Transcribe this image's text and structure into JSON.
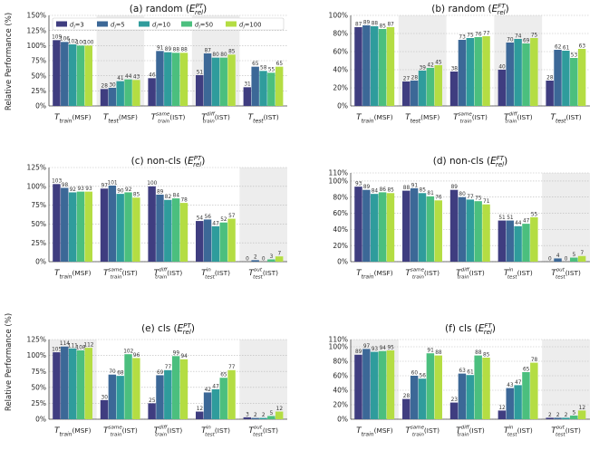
{
  "legend": {
    "entries": [
      {
        "label": "d_l=3",
        "color": "#3f3d80"
      },
      {
        "label": "d_l=5",
        "color": "#3c6897"
      },
      {
        "label": "d_l=10",
        "color": "#2f9c9c"
      },
      {
        "label": "d_l=50",
        "color": "#4bbf7e"
      },
      {
        "label": "d_l=100",
        "color": "#b4dd43"
      }
    ]
  },
  "ylabel": "Relative Performance (%)",
  "chart_data": [
    {
      "type": "bar",
      "title": "(a) random",
      "metric": "E_rel^PT",
      "ylim": [
        0,
        150
      ],
      "yticks": [
        "0%",
        "25%",
        "50%",
        "75%",
        "100%",
        "125%",
        "150%"
      ],
      "categories": [
        {
          "base": "T",
          "sub": "train",
          "suffix": "(MSF)"
        },
        {
          "base": "T",
          "sub": "test",
          "suffix": "(MSF)"
        },
        {
          "base": "T",
          "sup": "same",
          "sub": "train",
          "suffix": "(IST)"
        },
        {
          "base": "T",
          "sup": "diff",
          "sub": "train",
          "suffix": "(IST)"
        },
        {
          "base": "T",
          "sub": "test",
          "suffix": "(IST)"
        }
      ],
      "shaded": [
        1,
        3
      ],
      "series": [
        {
          "name": "d_l=3",
          "values": [
            109,
            28,
            46,
            51,
            31
          ]
        },
        {
          "name": "d_l=5",
          "values": [
            106,
            30,
            91,
            87,
            65
          ]
        },
        {
          "name": "d_l=10",
          "values": [
            102,
            41,
            89,
            80,
            58
          ]
        },
        {
          "name": "d_l=50",
          "values": [
            100,
            44,
            88,
            80,
            55
          ]
        },
        {
          "name": "d_l=100",
          "values": [
            100,
            43,
            88,
            85,
            65
          ]
        }
      ]
    },
    {
      "type": "bar",
      "title": "(b) random",
      "metric": "E_rel^FT",
      "ylim": [
        0,
        100
      ],
      "yticks": [
        "0%",
        "20%",
        "40%",
        "60%",
        "80%",
        "100%"
      ],
      "categories": [
        {
          "base": "T",
          "sub": "train",
          "suffix": "(MSF)"
        },
        {
          "base": "T",
          "sub": "test",
          "suffix": "(MSF)"
        },
        {
          "base": "T",
          "sup": "same",
          "sub": "train",
          "suffix": "(IST)"
        },
        {
          "base": "T",
          "sup": "diff",
          "sub": "train",
          "suffix": "(IST)"
        },
        {
          "base": "T",
          "sub": "test",
          "suffix": "(IST)"
        }
      ],
      "shaded": [
        1,
        3
      ],
      "series": [
        {
          "name": "d_l=3",
          "values": [
            87,
            27,
            38,
            40,
            28
          ]
        },
        {
          "name": "d_l=5",
          "values": [
            89,
            28,
            73,
            70,
            62
          ]
        },
        {
          "name": "d_l=10",
          "values": [
            88,
            39,
            75,
            74,
            61
          ]
        },
        {
          "name": "d_l=50",
          "values": [
            85,
            42,
            76,
            69,
            53
          ]
        },
        {
          "name": "d_l=100",
          "values": [
            87,
            45,
            77,
            75,
            63
          ]
        }
      ]
    },
    {
      "type": "bar",
      "title": "(c) non-cls",
      "metric": "E_rel^PT",
      "ylim": [
        0,
        125
      ],
      "yticks": [
        "0%",
        "25%",
        "50%",
        "75%",
        "100%",
        "125%"
      ],
      "categories": [
        {
          "base": "T",
          "sub": "train",
          "suffix": "(MSF)"
        },
        {
          "base": "T",
          "sup": "same",
          "sub": "train",
          "suffix": "(IST)"
        },
        {
          "base": "T",
          "sup": "diff",
          "sub": "train",
          "suffix": "(IST)"
        },
        {
          "base": "T",
          "sup": "in",
          "sub": "test",
          "suffix": "(IST)"
        },
        {
          "base": "T",
          "sup": "out",
          "sub": "test",
          "suffix": "(IST)"
        }
      ],
      "shaded": [
        4
      ],
      "series": [
        {
          "name": "d_l=3",
          "values": [
            103,
            97,
            100,
            54,
            0
          ]
        },
        {
          "name": "d_l=5",
          "values": [
            98,
            101,
            89,
            56,
            2
          ]
        },
        {
          "name": "d_l=10",
          "values": [
            92,
            90,
            82,
            47,
            0
          ]
        },
        {
          "name": "d_l=50",
          "values": [
            93,
            92,
            84,
            52,
            3
          ]
        },
        {
          "name": "d_l=100",
          "values": [
            93,
            85,
            78,
            57,
            7
          ]
        }
      ]
    },
    {
      "type": "bar",
      "title": "(d) non-cls",
      "metric": "E_rel^FT",
      "ylim": [
        0,
        110
      ],
      "yticks": [
        "0%",
        "20%",
        "40%",
        "60%",
        "80%",
        "100%",
        "110%"
      ],
      "categories": [
        {
          "base": "T",
          "sub": "train",
          "suffix": "(MSF)"
        },
        {
          "base": "T",
          "sup": "same",
          "sub": "train",
          "suffix": "(IST)"
        },
        {
          "base": "T",
          "sup": "diff",
          "sub": "train",
          "suffix": "(IST)"
        },
        {
          "base": "T",
          "sup": "in",
          "sub": "test",
          "suffix": "(IST)"
        },
        {
          "base": "T",
          "sup": "out",
          "sub": "test",
          "suffix": "(IST)"
        }
      ],
      "shaded": [
        4
      ],
      "series": [
        {
          "name": "d_l=3",
          "values": [
            93,
            88,
            89,
            51,
            0
          ]
        },
        {
          "name": "d_l=5",
          "values": [
            89,
            91,
            80,
            51,
            4
          ]
        },
        {
          "name": "d_l=10",
          "values": [
            84,
            85,
            77,
            44,
            0
          ]
        },
        {
          "name": "d_l=50",
          "values": [
            86,
            81,
            75,
            47,
            5
          ]
        },
        {
          "name": "d_l=100",
          "values": [
            85,
            76,
            71,
            55,
            7
          ]
        }
      ]
    },
    {
      "type": "bar",
      "title": "(e) cls",
      "metric": "E_rel^PT",
      "ylim": [
        0,
        125
      ],
      "yticks": [
        "0%",
        "25%",
        "50%",
        "75%",
        "100%",
        "125%"
      ],
      "categories": [
        {
          "base": "T",
          "sub": "train",
          "suffix": "(MSF)"
        },
        {
          "base": "T",
          "sup": "same",
          "sub": "train",
          "suffix": "(IST)"
        },
        {
          "base": "T",
          "sup": "diff",
          "sub": "train",
          "suffix": "(IST)"
        },
        {
          "base": "T",
          "sup": "in",
          "sub": "test",
          "suffix": "(IST)"
        },
        {
          "base": "T",
          "sup": "out",
          "sub": "test",
          "suffix": "(IST)"
        }
      ],
      "shaded": [
        0,
        4
      ],
      "series": [
        {
          "name": "d_l=3",
          "values": [
            105,
            30,
            25,
            12,
            3
          ]
        },
        {
          "name": "d_l=5",
          "values": [
            114,
            70,
            69,
            42,
            2
          ]
        },
        {
          "name": "d_l=10",
          "values": [
            111,
            68,
            77,
            47,
            2
          ]
        },
        {
          "name": "d_l=50",
          "values": [
            108,
            102,
            99,
            65,
            5
          ]
        },
        {
          "name": "d_l=100",
          "values": [
            112,
            96,
            94,
            77,
            12
          ]
        }
      ]
    },
    {
      "type": "bar",
      "title": "(f) cls",
      "metric": "E_rel^FT",
      "ylim": [
        0,
        110
      ],
      "yticks": [
        "0%",
        "20%",
        "40%",
        "60%",
        "80%",
        "100%",
        "110%"
      ],
      "categories": [
        {
          "base": "T",
          "sub": "train",
          "suffix": "(MSF)"
        },
        {
          "base": "T",
          "sup": "same",
          "sub": "train",
          "suffix": "(IST)"
        },
        {
          "base": "T",
          "sup": "diff",
          "sub": "train",
          "suffix": "(IST)"
        },
        {
          "base": "T",
          "sup": "in",
          "sub": "test",
          "suffix": "(IST)"
        },
        {
          "base": "T",
          "sup": "out",
          "sub": "test",
          "suffix": "(IST)"
        }
      ],
      "shaded": [
        0,
        4
      ],
      "series": [
        {
          "name": "d_l=3",
          "values": [
            89,
            28,
            23,
            12,
            2
          ]
        },
        {
          "name": "d_l=5",
          "values": [
            97,
            60,
            63,
            43,
            2
          ]
        },
        {
          "name": "d_l=10",
          "values": [
            93,
            56,
            61,
            47,
            2
          ]
        },
        {
          "name": "d_l=50",
          "values": [
            94,
            91,
            88,
            65,
            5
          ]
        },
        {
          "name": "d_l=100",
          "values": [
            95,
            88,
            85,
            78,
            12
          ]
        }
      ]
    }
  ]
}
